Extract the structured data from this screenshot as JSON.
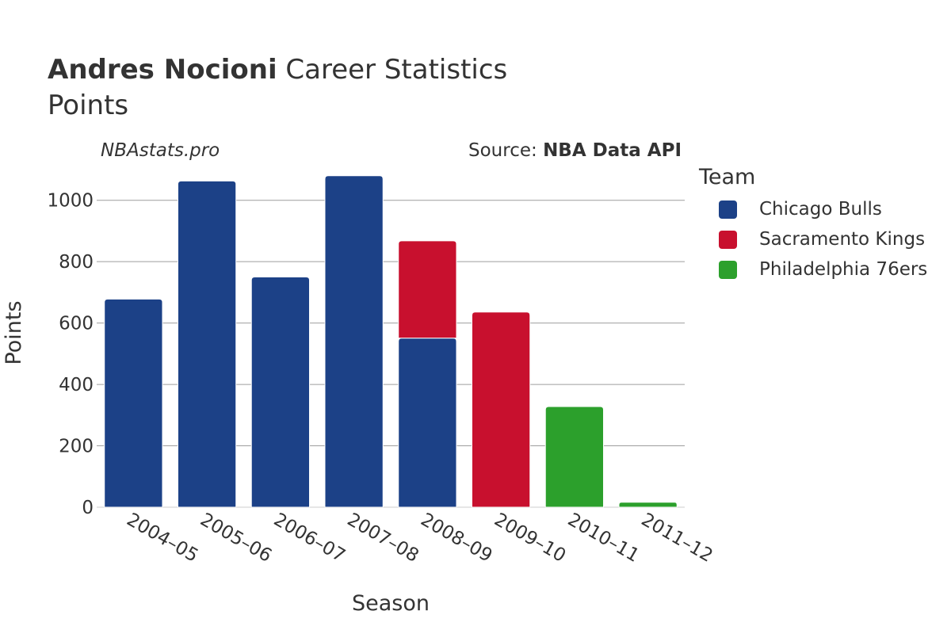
{
  "header": {
    "title_bold": "Andres Nocioni",
    "title_rest": " Career Statistics",
    "subtitle": "Points",
    "watermark": "NBAstats.pro",
    "source_prefix": "Source: ",
    "source_name": "NBA Data API"
  },
  "legend": {
    "title": "Team"
  },
  "chart_data": {
    "type": "bar",
    "stacked": true,
    "xlabel": "Season",
    "ylabel": "Points",
    "ylim": [
      0,
      1100
    ],
    "yticks": [
      0,
      200,
      400,
      600,
      800,
      1000
    ],
    "grid": true,
    "legend_position": "right",
    "categories": [
      "2004–05",
      "2005–06",
      "2006–07",
      "2007–08",
      "2008–09",
      "2009–10",
      "2010–11",
      "2011–12"
    ],
    "series": [
      {
        "name": "Chicago Bulls",
        "color": "#1c4187",
        "values": [
          678,
          1063,
          750,
          1080,
          551,
          0,
          0,
          0
        ]
      },
      {
        "name": "Sacramento Kings",
        "color": "#c8102e",
        "values": [
          0,
          0,
          0,
          0,
          317,
          636,
          0,
          0
        ]
      },
      {
        "name": "Philadelphia 76ers",
        "color": "#2ca02c",
        "values": [
          0,
          0,
          0,
          0,
          0,
          0,
          328,
          16
        ]
      }
    ]
  }
}
